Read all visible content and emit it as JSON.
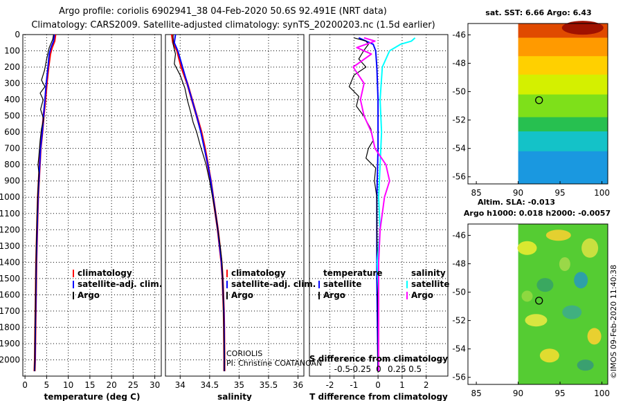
{
  "header": {
    "title_line1": "Argo profile: coriolis 6902941_38 04-Feb-2020 50.6S 92.491E (NRT data)",
    "title_line2": "Climatology: CARS2009. Satellite-adjusted climatology: synTS_20200203.nc (1.5d earlier)"
  },
  "colors": {
    "climatology": "#ff0000",
    "satellite": "#0000ff",
    "argo": "#000000",
    "satellite_salinity": "#00ffff",
    "argo_salinity": "#ff00ff"
  },
  "chart_data": [
    {
      "type": "line",
      "name": "temperature-profile",
      "xlabel": "temperature (deg C)",
      "ylabel": "",
      "xlim": [
        -0.5,
        31.5
      ],
      "ylim": [
        0,
        2100
      ],
      "x_ticks": [
        "0",
        "5",
        "10",
        "15",
        "20",
        "25",
        "30"
      ],
      "y_ticks": [
        "0",
        "100",
        "200",
        "300",
        "400",
        "500",
        "600",
        "700",
        "800",
        "900",
        "1000",
        "1100",
        "1200",
        "1300",
        "1400",
        "1500",
        "1600",
        "1700",
        "1800",
        "1900",
        "2000"
      ],
      "legend": [
        "climatology",
        "satellite-adj. clim.",
        "Argo"
      ],
      "series": [
        {
          "name": "climatology",
          "points": [
            [
              7,
              0
            ],
            [
              6.8,
              40
            ],
            [
              6.2,
              80
            ],
            [
              5.8,
              120
            ],
            [
              5.4,
              200
            ],
            [
              5.0,
              300
            ],
            [
              4.7,
              400
            ],
            [
              4.3,
              500
            ],
            [
              4.0,
              600
            ],
            [
              3.6,
              700
            ],
            [
              3.4,
              800
            ],
            [
              3.2,
              900
            ],
            [
              3.0,
              1000
            ],
            [
              2.8,
              1200
            ],
            [
              2.6,
              1400
            ],
            [
              2.5,
              1600
            ],
            [
              2.4,
              1800
            ],
            [
              2.3,
              2000
            ],
            [
              2.2,
              2070
            ]
          ]
        },
        {
          "name": "satellite-adj. clim.",
          "points": [
            [
              6.8,
              0
            ],
            [
              6.6,
              40
            ],
            [
              6.0,
              80
            ],
            [
              5.6,
              120
            ],
            [
              5.3,
              200
            ],
            [
              4.9,
              300
            ],
            [
              4.6,
              400
            ],
            [
              4.3,
              500
            ],
            [
              4.0,
              600
            ],
            [
              3.6,
              700
            ],
            [
              3.4,
              800
            ],
            [
              3.2,
              900
            ],
            [
              3.0,
              1000
            ],
            [
              2.8,
              1200
            ],
            [
              2.6,
              1400
            ],
            [
              2.5,
              1600
            ],
            [
              2.4,
              1800
            ],
            [
              2.3,
              2000
            ],
            [
              2.2,
              2070
            ]
          ]
        },
        {
          "name": "Argo",
          "points": [
            [
              6.6,
              0
            ],
            [
              6.4,
              30
            ],
            [
              5.6,
              80
            ],
            [
              5.0,
              150
            ],
            [
              4.5,
              220
            ],
            [
              3.8,
              280
            ],
            [
              4.6,
              320
            ],
            [
              3.5,
              360
            ],
            [
              4.2,
              400
            ],
            [
              3.6,
              460
            ],
            [
              4.3,
              520
            ],
            [
              3.8,
              580
            ],
            [
              3.5,
              650
            ],
            [
              3.2,
              750
            ],
            [
              3.0,
              800
            ],
            [
              3.2,
              850
            ],
            [
              3.0,
              950
            ],
            [
              2.8,
              1100
            ],
            [
              2.6,
              1300
            ],
            [
              2.5,
              1500
            ],
            [
              2.4,
              1700
            ],
            [
              2.3,
              1900
            ],
            [
              2.2,
              2070
            ]
          ]
        }
      ]
    },
    {
      "type": "line",
      "name": "salinity-profile",
      "xlabel": "salinity",
      "ylabel": "",
      "xlim": [
        33.75,
        36.1
      ],
      "ylim": [
        0,
        2100
      ],
      "x_ticks": [
        "34",
        "34.5",
        "35",
        "35.5",
        "36"
      ],
      "legend": [
        "climatology",
        "satellite-adj. clim.",
        "Argo"
      ],
      "annotation_line1": "CORIOLIS",
      "annotation_line2": "PI: Christine COATANOAN",
      "series": [
        {
          "name": "climatology",
          "points": [
            [
              33.86,
              0
            ],
            [
              33.88,
              50
            ],
            [
              33.95,
              100
            ],
            [
              34.02,
              200
            ],
            [
              34.12,
              300
            ],
            [
              34.2,
              400
            ],
            [
              34.28,
              500
            ],
            [
              34.36,
              600
            ],
            [
              34.42,
              700
            ],
            [
              34.47,
              800
            ],
            [
              34.52,
              900
            ],
            [
              34.56,
              1000
            ],
            [
              34.6,
              1100
            ],
            [
              34.64,
              1200
            ],
            [
              34.67,
              1300
            ],
            [
              34.7,
              1400
            ],
            [
              34.72,
              1500
            ],
            [
              34.73,
              1600
            ],
            [
              34.74,
              1700
            ],
            [
              34.745,
              1800
            ],
            [
              34.75,
              2000
            ],
            [
              34.75,
              2070
            ]
          ]
        },
        {
          "name": "satellite-adj. clim.",
          "points": [
            [
              33.92,
              0
            ],
            [
              33.9,
              50
            ],
            [
              33.96,
              100
            ],
            [
              34.04,
              200
            ],
            [
              34.12,
              300
            ],
            [
              34.2,
              400
            ],
            [
              34.28,
              500
            ],
            [
              34.35,
              600
            ],
            [
              34.41,
              700
            ],
            [
              34.47,
              800
            ],
            [
              34.52,
              900
            ],
            [
              34.56,
              1000
            ],
            [
              34.6,
              1100
            ],
            [
              34.64,
              1200
            ],
            [
              34.67,
              1300
            ],
            [
              34.7,
              1400
            ],
            [
              34.72,
              1500
            ],
            [
              34.73,
              1600
            ],
            [
              34.74,
              1700
            ],
            [
              34.745,
              1800
            ],
            [
              34.75,
              2000
            ],
            [
              34.75,
              2070
            ]
          ]
        },
        {
          "name": "Argo",
          "points": [
            [
              33.88,
              0
            ],
            [
              33.88,
              60
            ],
            [
              33.92,
              120
            ],
            [
              33.9,
              180
            ],
            [
              34.0,
              250
            ],
            [
              34.08,
              330
            ],
            [
              34.12,
              400
            ],
            [
              34.18,
              480
            ],
            [
              34.22,
              540
            ],
            [
              34.28,
              600
            ],
            [
              34.34,
              680
            ],
            [
              34.4,
              750
            ],
            [
              34.44,
              800
            ],
            [
              34.5,
              900
            ],
            [
              34.55,
              1000
            ],
            [
              34.6,
              1100
            ],
            [
              34.64,
              1200
            ],
            [
              34.68,
              1300
            ],
            [
              34.71,
              1400
            ],
            [
              34.72,
              1500
            ],
            [
              34.73,
              1600
            ],
            [
              34.74,
              1800
            ],
            [
              34.75,
              2000
            ],
            [
              34.75,
              2070
            ]
          ]
        }
      ]
    },
    {
      "type": "line",
      "name": "difference-profile",
      "xlabel": "T difference from climatology",
      "top_label": "S difference from climatology",
      "xlim": [
        -2.85,
        2.9
      ],
      "s_xlim": [
        -0.95,
        0.95
      ],
      "ylim": [
        0,
        2100
      ],
      "x_ticks": [
        "-2",
        "-1",
        "0",
        "1",
        "2"
      ],
      "s_ticks": [
        "-0.5",
        "-0.25",
        "0",
        "0.25",
        "0.5"
      ],
      "legend_temperature_heading": "temperature",
      "legend_salinity_heading": "salinity",
      "legend_temperature": [
        "satellite",
        "Argo"
      ],
      "legend_salinity": [
        "satellite",
        "Argo"
      ],
      "series": [
        {
          "name": "T satellite",
          "points": [
            [
              -0.8,
              20
            ],
            [
              -0.5,
              40
            ],
            [
              -0.2,
              60
            ],
            [
              -0.1,
              100
            ],
            [
              -0.05,
              200
            ],
            [
              0,
              400
            ],
            [
              0,
              700
            ],
            [
              -0.05,
              1000
            ],
            [
              -0.05,
              1500
            ],
            [
              0,
              2070
            ]
          ]
        },
        {
          "name": "T Argo",
          "points": [
            [
              -1.0,
              20
            ],
            [
              -0.5,
              40
            ],
            [
              -0.4,
              60
            ],
            [
              -0.6,
              100
            ],
            [
              -0.8,
              150
            ],
            [
              -0.5,
              200
            ],
            [
              -1.0,
              250
            ],
            [
              -1.2,
              320
            ],
            [
              -0.8,
              380
            ],
            [
              -0.9,
              440
            ],
            [
              -0.6,
              500
            ],
            [
              -0.3,
              580
            ],
            [
              -0.2,
              650
            ],
            [
              -0.4,
              700
            ],
            [
              -0.5,
              760
            ],
            [
              -0.1,
              820
            ],
            [
              -0.15,
              900
            ],
            [
              -0.05,
              1000
            ],
            [
              -0.05,
              1200
            ],
            [
              -0.02,
              1500
            ],
            [
              0,
              1800
            ],
            [
              0,
              2070
            ]
          ]
        },
        {
          "name": "S satellite",
          "points": [
            [
              0.5,
              20
            ],
            [
              0.45,
              40
            ],
            [
              0.3,
              60
            ],
            [
              0.15,
              100
            ],
            [
              0.05,
              200
            ],
            [
              0.02,
              400
            ],
            [
              0.04,
              600
            ],
            [
              0.02,
              800
            ],
            [
              0,
              1000
            ],
            [
              0.02,
              1200
            ],
            [
              -0.02,
              1400
            ],
            [
              0,
              1600
            ],
            [
              0,
              2070
            ]
          ]
        },
        {
          "name": "S Argo",
          "points": [
            [
              -0.2,
              20
            ],
            [
              -0.05,
              40
            ],
            [
              -0.3,
              80
            ],
            [
              -0.1,
              120
            ],
            [
              -0.35,
              200
            ],
            [
              -0.2,
              300
            ],
            [
              -0.25,
              400
            ],
            [
              -0.2,
              500
            ],
            [
              -0.1,
              600
            ],
            [
              -0.05,
              700
            ],
            [
              0.1,
              800
            ],
            [
              0.15,
              900
            ],
            [
              0.08,
              1000
            ],
            [
              0.05,
              1100
            ],
            [
              0.02,
              1200
            ],
            [
              0,
              1400
            ],
            [
              0,
              1600
            ],
            [
              0,
              2070
            ]
          ]
        }
      ]
    },
    {
      "type": "heatmap",
      "name": "sst-map",
      "title": "sat. SST: 6.66 Argo: 6.43",
      "x_ticks": [
        "85",
        "90",
        "95",
        "100"
      ],
      "y_ticks": [
        "-46",
        "-48",
        "-50",
        "-52",
        "-54",
        "-56"
      ],
      "xlim": [
        84.0,
        100.7
      ],
      "ylim": [
        -56.5,
        -45.2
      ],
      "data_xlim": [
        90,
        100.7
      ],
      "bands": [
        {
          "lat_from": -45.2,
          "lat_to": -46.2,
          "color": "#e04a00"
        },
        {
          "lat_from": -46.2,
          "lat_to": -47.5,
          "color": "#ff9a00"
        },
        {
          "lat_from": -47.5,
          "lat_to": -48.8,
          "color": "#ffd000"
        },
        {
          "lat_from": -48.8,
          "lat_to": -50.2,
          "color": "#d4f000"
        },
        {
          "lat_from": -50.2,
          "lat_to": -51.8,
          "color": "#7ee01a"
        },
        {
          "lat_from": -51.8,
          "lat_to": -52.8,
          "color": "#27c050"
        },
        {
          "lat_from": -52.8,
          "lat_to": -54.2,
          "color": "#14c2c8"
        },
        {
          "lat_from": -54.2,
          "lat_to": -56.5,
          "color": "#1a98e0"
        }
      ],
      "argo_position": {
        "lon": 92.491,
        "lat": -50.6
      }
    },
    {
      "type": "heatmap",
      "name": "sla-map",
      "title_line1": "Altim. SLA: -0.013",
      "title_line2": "Argo h1000: 0.018 h2000: -0.0057",
      "x_ticks": [
        "85",
        "90",
        "95",
        "100"
      ],
      "y_ticks": [
        "-46",
        "-48",
        "-50",
        "-52",
        "-54",
        "-56"
      ],
      "xlim": [
        84.0,
        100.7
      ],
      "ylim": [
        -56.5,
        -45.2
      ],
      "data_xlim": [
        90,
        100.7
      ],
      "base_color": "#55cc33",
      "argo_position": {
        "lon": 92.491,
        "lat": -50.6
      }
    }
  ],
  "footer": {
    "credit": "©IMOS 09-Feb-2020 11:40:38"
  }
}
